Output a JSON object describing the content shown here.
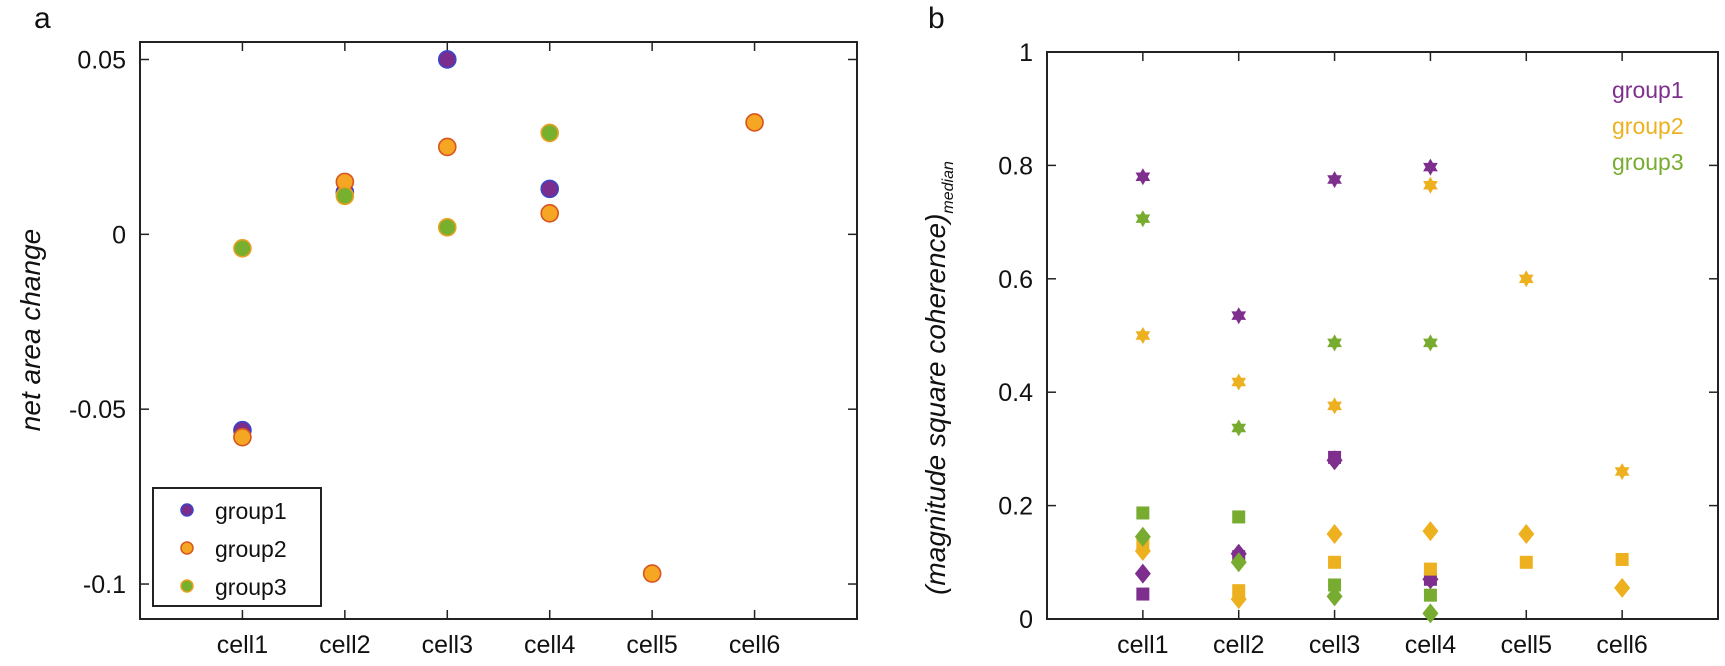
{
  "chart_data": [
    {
      "panel": "a",
      "type": "scatter",
      "ylabel": "net area change",
      "categories": [
        "cell1",
        "cell2",
        "cell3",
        "cell4",
        "cell5",
        "cell6"
      ],
      "ylim": [
        -0.11,
        0.055
      ],
      "yticks": [
        -0.1,
        -0.05,
        0,
        0.05
      ],
      "ytick_labels": [
        "-0.1",
        "-0.05",
        "0",
        "0.05"
      ],
      "legend": {
        "position": "bottom-left",
        "entries": [
          "group1",
          "group2",
          "group3"
        ]
      },
      "series": [
        {
          "name": "group1",
          "fill": "#7B2D8E",
          "edge": "#3A45C8",
          "values": [
            -0.056,
            0.012,
            0.05,
            0.013,
            null,
            null
          ]
        },
        {
          "name": "group2",
          "fill": "#F5A623",
          "edge": "#D9541E",
          "values": [
            -0.058,
            0.015,
            0.025,
            0.006,
            -0.097,
            0.032
          ]
        },
        {
          "name": "group3",
          "fill": "#77B02E",
          "edge": "#E9A020",
          "values": [
            -0.004,
            0.011,
            0.002,
            0.029,
            null,
            null
          ]
        }
      ]
    },
    {
      "panel": "b",
      "type": "scatter",
      "ylabel": "(magnitude square coherence)",
      "ylabel_subscript": "median",
      "categories": [
        "cell1",
        "cell2",
        "cell3",
        "cell4",
        "cell5",
        "cell6"
      ],
      "ylim": [
        0,
        1
      ],
      "yticks": [
        0,
        0.2,
        0.4,
        0.6,
        0.8,
        1
      ],
      "ytick_labels": [
        "0",
        "0.2",
        "0.4",
        "0.6",
        "0.8",
        "1"
      ],
      "legend": {
        "position": "top-right",
        "entries": [
          "group1",
          "group2",
          "group3"
        ]
      },
      "series": [
        {
          "name": "group1",
          "color": "#7E2F8E",
          "star": [
            0.78,
            0.535,
            0.775,
            0.797,
            null,
            null
          ],
          "diamond": [
            0.08,
            0.115,
            0.28,
            0.07,
            null,
            null
          ],
          "square": [
            0.044,
            0.11,
            0.285,
            0.07,
            null,
            null
          ]
        },
        {
          "name": "group2",
          "color": "#EDB120",
          "star": [
            0.5,
            0.418,
            0.376,
            0.765,
            0.6,
            0.26
          ],
          "diamond": [
            0.12,
            0.035,
            0.15,
            0.155,
            0.15,
            0.055
          ],
          "square": [
            0.13,
            0.05,
            0.1,
            0.088,
            0.1,
            0.105
          ]
        },
        {
          "name": "group3",
          "color": "#77AC30",
          "star": [
            0.706,
            0.337,
            0.487,
            0.487,
            null,
            null
          ],
          "diamond": [
            0.145,
            0.1,
            0.04,
            0.01,
            null,
            null
          ],
          "square": [
            0.187,
            0.18,
            0.06,
            0.042,
            null,
            null
          ]
        }
      ]
    }
  ]
}
